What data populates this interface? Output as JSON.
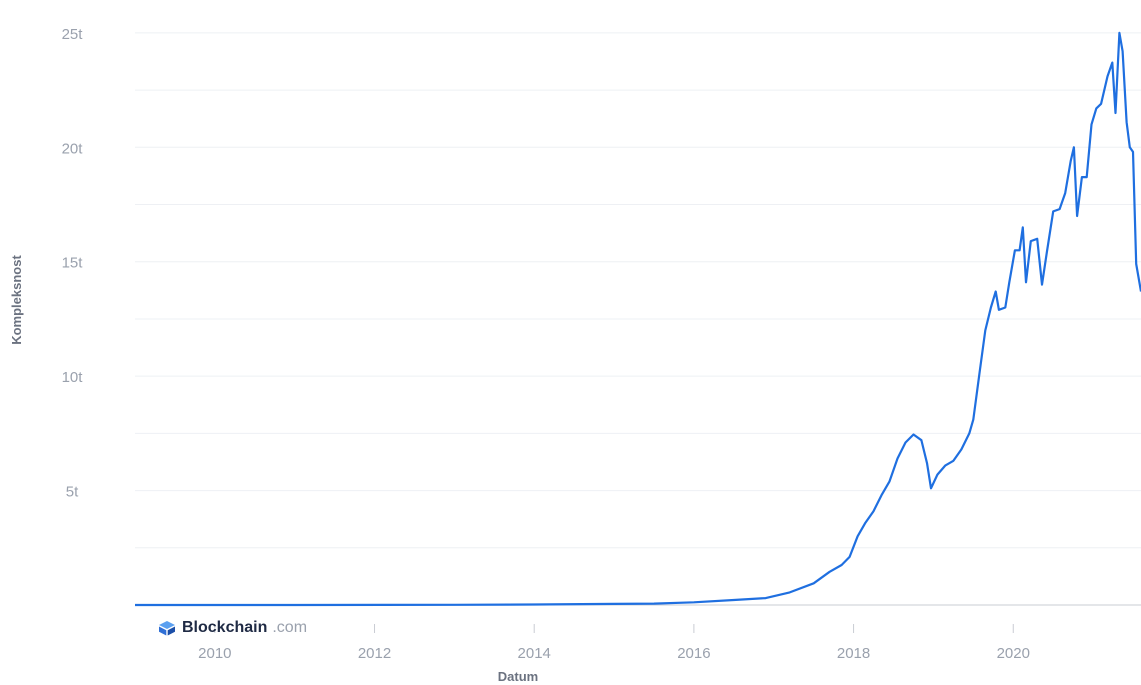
{
  "chart_data": {
    "type": "line",
    "title": "",
    "xlabel": "Datum",
    "ylabel": "Kompleksnost",
    "x_ticks": [
      "2010",
      "2012",
      "2014",
      "2016",
      "2018",
      "2020"
    ],
    "y_ticks": [
      "5t",
      "10t",
      "15t",
      "20t",
      "25t"
    ],
    "xlim": [
      2009.0,
      2021.6
    ],
    "ylim": [
      0,
      26
    ],
    "grid": true,
    "legend": "none",
    "color": "#1f6fe0",
    "series": [
      {
        "values": [
          {
            "x": 2009.0,
            "y": 0.0
          },
          {
            "x": 2011.0,
            "y": 0.0
          },
          {
            "x": 2013.0,
            "y": 0.01
          },
          {
            "x": 2014.0,
            "y": 0.02
          },
          {
            "x": 2015.0,
            "y": 0.05
          },
          {
            "x": 2015.5,
            "y": 0.06
          },
          {
            "x": 2016.0,
            "y": 0.12
          },
          {
            "x": 2016.5,
            "y": 0.22
          },
          {
            "x": 2016.9,
            "y": 0.3
          },
          {
            "x": 2017.2,
            "y": 0.55
          },
          {
            "x": 2017.5,
            "y": 0.95
          },
          {
            "x": 2017.7,
            "y": 1.45
          },
          {
            "x": 2017.85,
            "y": 1.75
          },
          {
            "x": 2017.95,
            "y": 2.1
          },
          {
            "x": 2018.05,
            "y": 3.0
          },
          {
            "x": 2018.15,
            "y": 3.6
          },
          {
            "x": 2018.25,
            "y": 4.1
          },
          {
            "x": 2018.35,
            "y": 4.8
          },
          {
            "x": 2018.45,
            "y": 5.4
          },
          {
            "x": 2018.55,
            "y": 6.4
          },
          {
            "x": 2018.65,
            "y": 7.1
          },
          {
            "x": 2018.75,
            "y": 7.45
          },
          {
            "x": 2018.85,
            "y": 7.2
          },
          {
            "x": 2018.92,
            "y": 6.2
          },
          {
            "x": 2018.97,
            "y": 5.1
          },
          {
            "x": 2019.05,
            "y": 5.7
          },
          {
            "x": 2019.15,
            "y": 6.1
          },
          {
            "x": 2019.25,
            "y": 6.3
          },
          {
            "x": 2019.35,
            "y": 6.8
          },
          {
            "x": 2019.45,
            "y": 7.5
          },
          {
            "x": 2019.5,
            "y": 8.1
          },
          {
            "x": 2019.58,
            "y": 10.2
          },
          {
            "x": 2019.65,
            "y": 12.0
          },
          {
            "x": 2019.72,
            "y": 13.0
          },
          {
            "x": 2019.78,
            "y": 13.7
          },
          {
            "x": 2019.82,
            "y": 12.9
          },
          {
            "x": 2019.9,
            "y": 13.0
          },
          {
            "x": 2019.95,
            "y": 14.1
          },
          {
            "x": 2020.02,
            "y": 15.5
          },
          {
            "x": 2020.08,
            "y": 15.5
          },
          {
            "x": 2020.12,
            "y": 16.5
          },
          {
            "x": 2020.16,
            "y": 14.1
          },
          {
            "x": 2020.22,
            "y": 15.9
          },
          {
            "x": 2020.3,
            "y": 16.0
          },
          {
            "x": 2020.36,
            "y": 14.0
          },
          {
            "x": 2020.42,
            "y": 15.4
          },
          {
            "x": 2020.5,
            "y": 17.2
          },
          {
            "x": 2020.58,
            "y": 17.3
          },
          {
            "x": 2020.65,
            "y": 18.0
          },
          {
            "x": 2020.72,
            "y": 19.4
          },
          {
            "x": 2020.76,
            "y": 20.0
          },
          {
            "x": 2020.8,
            "y": 17.0
          },
          {
            "x": 2020.86,
            "y": 18.7
          },
          {
            "x": 2020.92,
            "y": 18.7
          },
          {
            "x": 2020.98,
            "y": 21.0
          },
          {
            "x": 2021.04,
            "y": 21.7
          },
          {
            "x": 2021.1,
            "y": 21.9
          },
          {
            "x": 2021.18,
            "y": 23.1
          },
          {
            "x": 2021.24,
            "y": 23.7
          },
          {
            "x": 2021.28,
            "y": 21.5
          },
          {
            "x": 2021.33,
            "y": 25.0
          },
          {
            "x": 2021.37,
            "y": 24.2
          },
          {
            "x": 2021.42,
            "y": 21.1
          },
          {
            "x": 2021.46,
            "y": 20.0
          },
          {
            "x": 2021.5,
            "y": 19.8
          },
          {
            "x": 2021.54,
            "y": 14.9
          },
          {
            "x": 2021.6,
            "y": 13.7
          }
        ]
      }
    ]
  },
  "logo": {
    "brand": "Blockchain",
    "domain": ".com",
    "icon": "blockchain-cube-icon"
  }
}
